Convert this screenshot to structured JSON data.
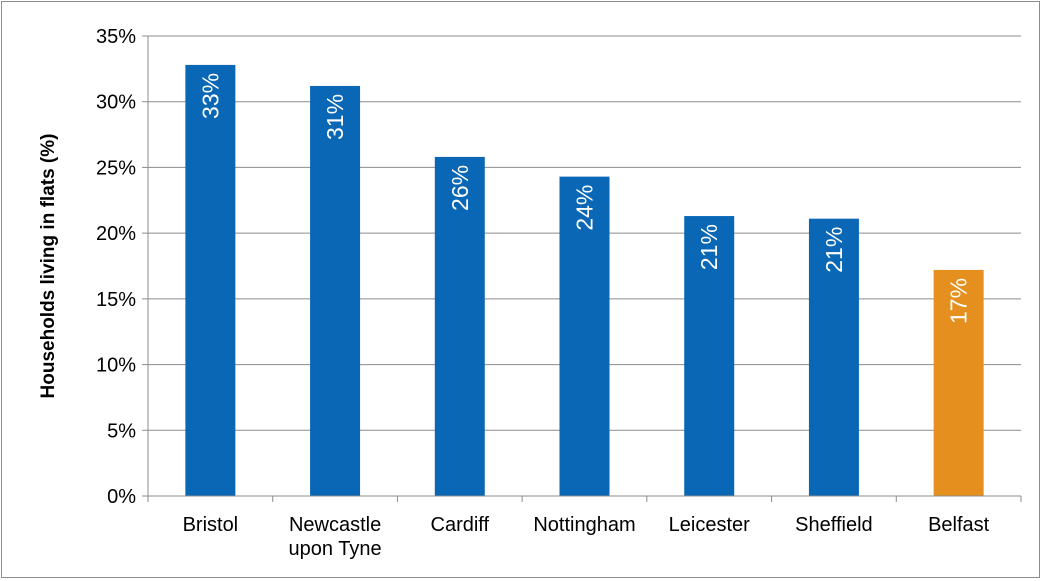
{
  "chart_data": {
    "type": "bar",
    "title": "",
    "xlabel": "",
    "ylabel": "Households living in flats (%)",
    "ylim": [
      0,
      35
    ],
    "yticks": [
      0,
      5,
      10,
      15,
      20,
      25,
      30,
      35
    ],
    "ytick_suffix": "%",
    "grid": true,
    "categories": [
      [
        "Bristol"
      ],
      [
        "Newcastle",
        "upon Tyne"
      ],
      [
        "Cardiff"
      ],
      [
        "Nottingham"
      ],
      [
        "Leicester"
      ],
      [
        "Sheffield"
      ],
      [
        "Belfast"
      ]
    ],
    "values": [
      32.8,
      31.2,
      25.8,
      24.3,
      21.3,
      21.1,
      17.2
    ],
    "data_labels": [
      "33%",
      "31%",
      "26%",
      "24%",
      "21%",
      "21%",
      "17%"
    ],
    "colors": [
      "#0a67b5",
      "#0a67b5",
      "#0a67b5",
      "#0a67b5",
      "#0a67b5",
      "#0a67b5",
      "#e5901e"
    ]
  }
}
